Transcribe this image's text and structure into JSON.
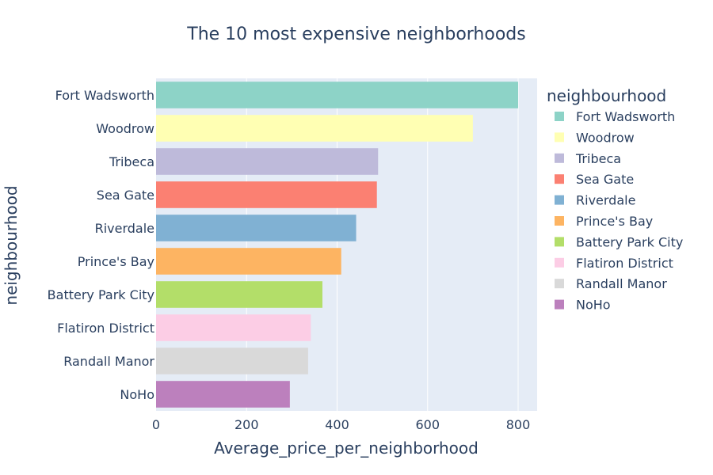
{
  "chart_data": {
    "type": "bar",
    "orientation": "horizontal",
    "title": "The 10 most expensive neighborhoods",
    "xlabel": "Average_price_per_neighborhood",
    "ylabel": "neighbourhood",
    "xlim": [
      0,
      842
    ],
    "x_ticks": [
      0,
      200,
      400,
      600,
      800
    ],
    "grid": true,
    "legend_title": "neighbourhood",
    "legend_position": "right",
    "categories": [
      "Fort Wadsworth",
      "Woodrow",
      "Tribeca",
      "Sea Gate",
      "Riverdale",
      "Prince's Bay",
      "Battery Park City",
      "Flatiron District",
      "Randall Manor",
      "NoHo"
    ],
    "values": [
      800,
      700,
      490.6,
      487.9,
      442.1,
      409.1,
      367.6,
      341.9,
      336.0,
      295.6
    ],
    "colors": [
      "#8dd3c7",
      "#ffffb3",
      "#bebada",
      "#fb8072",
      "#80b1d3",
      "#fdb462",
      "#b3de69",
      "#fccde5",
      "#d9d9d9",
      "#bc80bd"
    ]
  },
  "colors": {
    "plot_background": "#e5ecf6",
    "grid": "#ffffff",
    "text": "#2a3f5f"
  }
}
